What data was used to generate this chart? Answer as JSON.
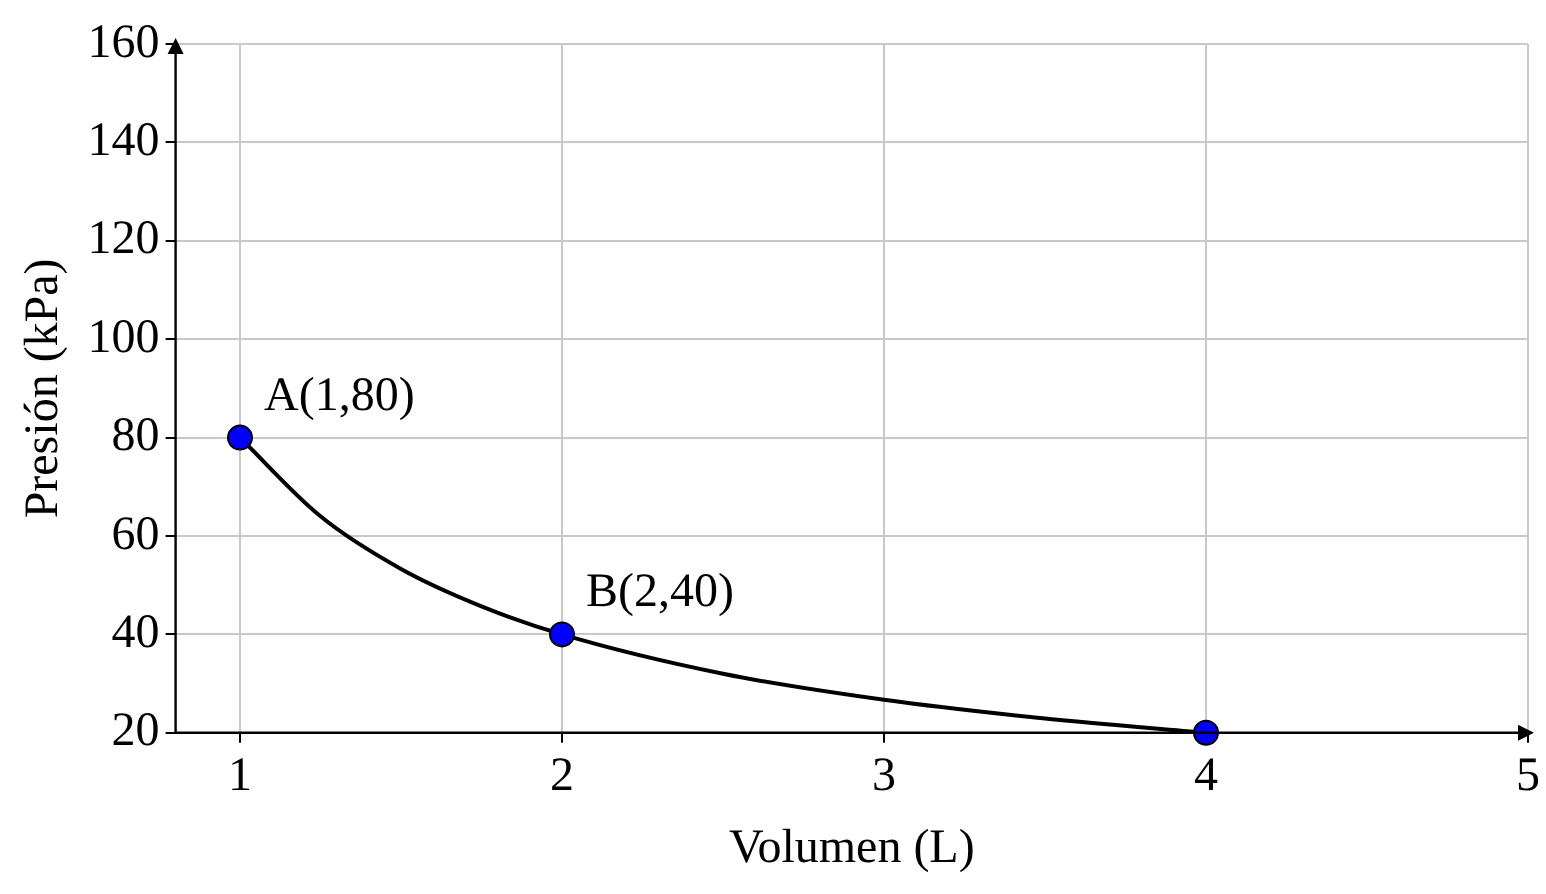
{
  "chart_data": {
    "type": "line",
    "xlabel": "Volumen (L)",
    "ylabel": "Presión (kPa)",
    "xlim": [
      0.8,
      5
    ],
    "xticks": [
      1,
      2,
      3,
      4,
      5
    ],
    "ylim": [
      20,
      160
    ],
    "yticks": [
      20,
      40,
      60,
      80,
      100,
      120,
      140,
      160
    ],
    "grid": true,
    "series": [
      {
        "type": "line",
        "color": "#000000",
        "marker": "none",
        "x": [
          1,
          1.25,
          1.5,
          1.75,
          2,
          2.5,
          3,
          3.5,
          4
        ],
        "values": [
          80,
          64,
          53.3,
          45.7,
          40,
          32,
          26.7,
          22.9,
          20
        ]
      },
      {
        "type": "scatter",
        "color": "#0000ff",
        "marker": "circle",
        "x": [
          1,
          2,
          4
        ],
        "values": [
          80,
          40,
          20
        ]
      }
    ],
    "annotations": [
      {
        "text": "A(1,80)",
        "x": 1,
        "y": 80
      },
      {
        "text": "B(2,40)",
        "x": 2,
        "y": 40
      }
    ]
  }
}
